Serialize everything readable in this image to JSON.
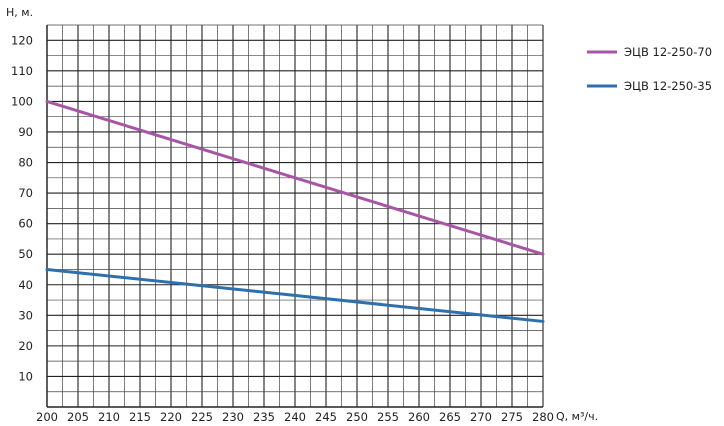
{
  "chart_data": {
    "type": "line",
    "ylabel": "H, м.",
    "xlabel": "Q, м³/ч.",
    "xlim": [
      200,
      280
    ],
    "ylim": [
      0,
      125
    ],
    "xticks": [
      "200",
      "205",
      "210",
      "215",
      "220",
      "225",
      "230",
      "235",
      "240",
      "245",
      "250",
      "255",
      "260",
      "265",
      "270",
      "275",
      "280"
    ],
    "yticks": [
      "10",
      "20",
      "30",
      "40",
      "50",
      "60",
      "70",
      "80",
      "90",
      "100",
      "110",
      "120"
    ],
    "grid": true,
    "legend_position": "right",
    "series": [
      {
        "name": "ЭЦВ 12-250-70",
        "color": "#a855a8",
        "x": [
          200,
          280
        ],
        "y": [
          100,
          50
        ]
      },
      {
        "name": "ЭЦВ 12-250-35",
        "color": "#2e6fad",
        "x": [
          200,
          280
        ],
        "y": [
          45,
          28
        ]
      }
    ]
  }
}
